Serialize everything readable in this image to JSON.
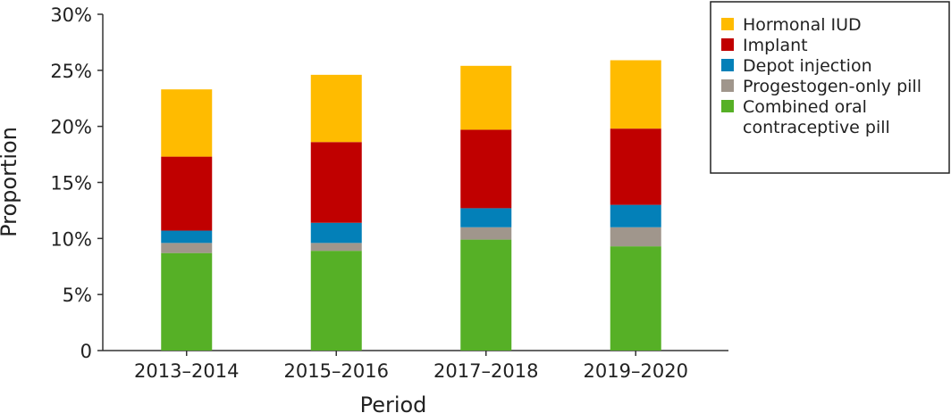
{
  "chart_data": {
    "type": "bar",
    "stacked": true,
    "title": "",
    "xlabel": "Period",
    "ylabel": "Proportion",
    "ylim": [
      0,
      30
    ],
    "yticks": [
      0,
      5,
      10,
      15,
      20,
      25,
      30
    ],
    "ytick_labels": [
      "0",
      "5%",
      "10%",
      "15%",
      "20%",
      "25%",
      "30%"
    ],
    "grid": false,
    "legend_position": "top-right",
    "categories": [
      "2013–2014",
      "2015–2016",
      "2017–2018",
      "2019–2020"
    ],
    "series": [
      {
        "name": "Combined oral contraceptive pill",
        "legend_lines": [
          "Combined oral",
          "contraceptive pill"
        ],
        "color": "#56b026",
        "values": [
          8.7,
          8.9,
          9.9,
          9.3
        ]
      },
      {
        "name": "Progestogen-only pill",
        "legend_lines": [
          "Progestogen-only pill"
        ],
        "color": "#a0968c",
        "values": [
          0.9,
          0.7,
          1.1,
          1.7
        ]
      },
      {
        "name": "Depot injection",
        "legend_lines": [
          "Depot injection"
        ],
        "color": "#0380b8",
        "values": [
          1.1,
          1.8,
          1.7,
          2.0
        ]
      },
      {
        "name": "Implant",
        "legend_lines": [
          "Implant"
        ],
        "color": "#c00000",
        "values": [
          6.6,
          7.2,
          7.0,
          6.8
        ]
      },
      {
        "name": "Hormonal IUD",
        "legend_lines": [
          "Hormonal IUD"
        ],
        "color": "#ffbb00",
        "values": [
          6.0,
          6.0,
          5.7,
          6.1
        ]
      }
    ]
  }
}
